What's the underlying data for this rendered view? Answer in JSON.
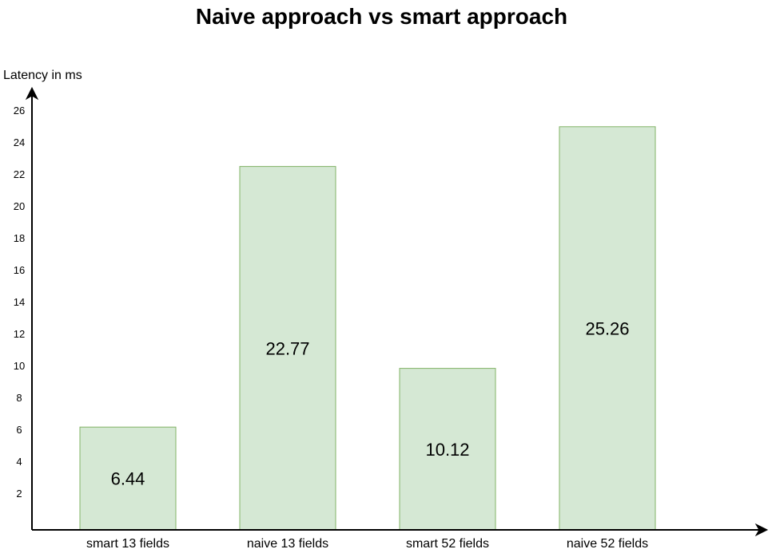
{
  "chart_data": {
    "type": "bar",
    "title": "Naive approach vs smart approach",
    "ylabel": "Latency in ms",
    "xlabel": "",
    "categories": [
      "smart 13 fields",
      "naive 13 fields",
      "smart 52 fields",
      "naive 52 fields"
    ],
    "values": [
      6.44,
      22.77,
      10.12,
      25.26
    ],
    "value_labels": [
      "6.44",
      "22.77",
      "10.12",
      "25.26"
    ],
    "yticks": [
      2,
      4,
      6,
      8,
      10,
      12,
      14,
      16,
      18,
      20,
      22,
      24,
      26
    ],
    "ylim": [
      0,
      28
    ],
    "grid": false,
    "bar_fill": "#d5e8d4",
    "bar_stroke": "#82b366",
    "axis_color": "#000000"
  }
}
